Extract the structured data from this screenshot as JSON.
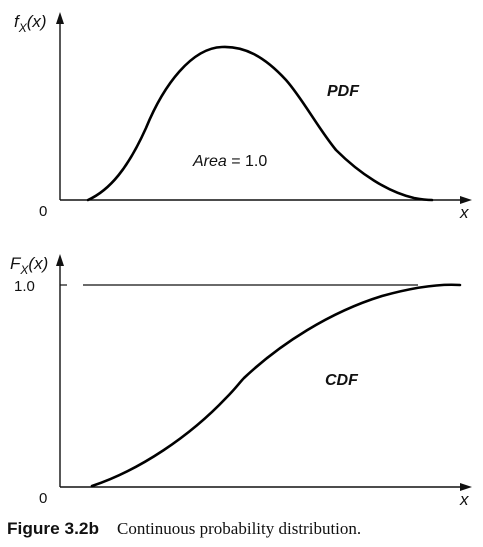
{
  "pdf_panel": {
    "ylabel_main": "f",
    "ylabel_sub": "X",
    "ylabel_arg": "(x)",
    "origin": "0",
    "xlabel": "x",
    "curve_label": "PDF",
    "area_word": "Area",
    "area_value": " = 1.0"
  },
  "cdf_panel": {
    "ylabel_main": "F",
    "ylabel_sub": "X",
    "ylabel_arg": "(x)",
    "origin": "0",
    "xlabel": "x",
    "curve_label": "CDF",
    "tick_label": "1.0"
  },
  "caption": {
    "number": "Figure 3.2b",
    "text": "Continuous probability distribution."
  },
  "colors": {
    "ink": "#111111",
    "background": "#ffffff"
  }
}
